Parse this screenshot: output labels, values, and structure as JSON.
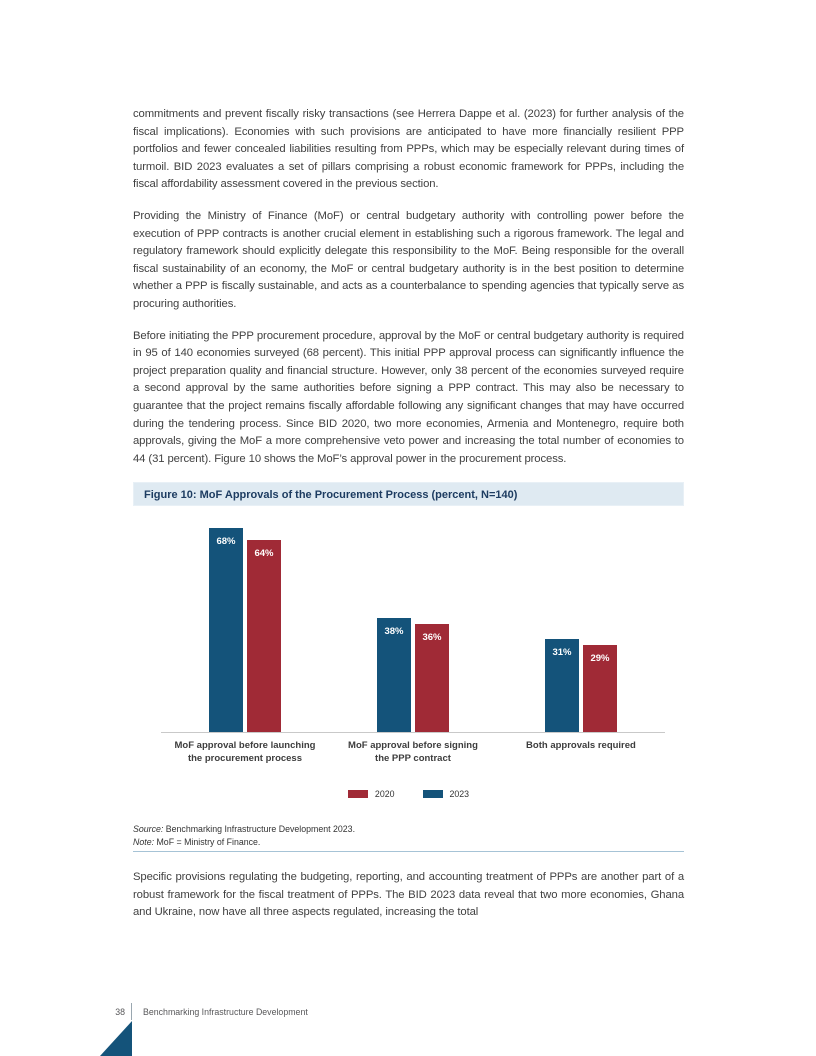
{
  "page": {
    "paragraphs": {
      "p1": "commitments and prevent fiscally risky transactions (see Herrera Dappe et al. (2023) for further analysis of the fiscal implications). Economies with such provisions are anticipated to have more financially resilient PPP portfolios and fewer concealed liabilities resulting from PPPs, which may be especially relevant during times of turmoil. BID 2023 evaluates a set of pillars comprising a robust economic framework for PPPs, including the fiscal affordability assessment covered in the previous section.",
      "p2": "Providing the Ministry of Finance (MoF) or central budgetary authority with controlling power before the execution of PPP contracts is another crucial element in establishing such a rigorous framework. The legal and regulatory framework should explicitly delegate this responsibility to the MoF. Being responsible for the overall fiscal sustainability of an economy, the MoF or central budgetary authority is in the best position to determine whether a PPP is fiscally sustainable, and acts as a counterbalance to spending agencies that typically serve as procuring authorities.",
      "p3": "Before initiating the PPP procurement procedure, approval by the MoF or central budgetary authority is required in 95 of 140 economies surveyed (68 percent). This initial PPP approval process can significantly influence the project preparation quality and financial structure. However, only 38 percent of the economies surveyed require a second approval by the same authorities before signing a PPP contract. This may also be necessary to guarantee that the project remains fiscally affordable following any significant changes that may have occurred during the tendering process. Since BID 2020, two more economies, Armenia and Montenegro, require both approvals, giving the MoF a more comprehensive veto power and increasing the total number of economies to 44 (31 percent). Figure 10 shows the MoF’s approval power in the procurement process.",
      "p4": "Specific provisions regulating the budgeting, reporting, and accounting treatment of PPPs are another part of a robust framework for the fiscal treatment of PPPs. The BID 2023 data reveal that two more economies, Ghana and Ukraine, now have all three aspects regulated, increasing the total"
    },
    "figure": {
      "source_label": "Source:",
      "source_text": "Benchmarking Infrastructure Development 2023.",
      "note_label": "Note:",
      "note_text": "MoF = Ministry of Finance."
    },
    "footer": {
      "page_number": "38",
      "book_title": "Benchmarking Infrastructure Development"
    }
  },
  "chart_data": {
    "type": "bar",
    "title": "Figure 10: MoF Approvals of the Procurement Process (percent, N=140)",
    "categories": [
      "MoF approval before launching\nthe procurement process",
      "MoF approval before signing\nthe PPP contract",
      "Both approvals required"
    ],
    "series": [
      {
        "name": "2023",
        "color": "#14537a",
        "values": [
          68,
          38,
          31
        ]
      },
      {
        "name": "2020",
        "color": "#a02a36",
        "values": [
          64,
          36,
          29
        ]
      }
    ],
    "legend": [
      {
        "label": "2020",
        "color": "#a02a36"
      },
      {
        "label": "2023",
        "color": "#14537a"
      }
    ],
    "value_suffix": "%",
    "ylabel": "",
    "xlabel": "",
    "ylim": [
      0,
      71
    ],
    "grid": false,
    "bar_labels": true,
    "legend_position": "bottom"
  },
  "colors": {
    "accent_blue": "#14537a",
    "accent_red": "#a02a36",
    "figure_header_bg": "#dfeaf2",
    "figure_title_text": "#1d3c61",
    "note_rule": "#a6c3d6",
    "body_text": "#414141"
  }
}
